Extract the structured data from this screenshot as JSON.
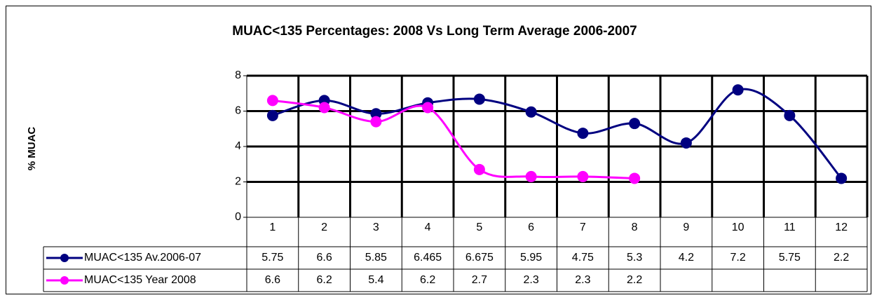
{
  "chart_data": {
    "type": "line",
    "title": "MUAC<135 Percentages: 2008 Vs Long Term Average 2006-2007",
    "y_label": "% MUAC",
    "categories": [
      "1",
      "2",
      "3",
      "4",
      "5",
      "6",
      "7",
      "8",
      "9",
      "10",
      "11",
      "12"
    ],
    "series": [
      {
        "name": "MUAC<135 Av.2006-07",
        "color": "#000080",
        "values": [
          5.75,
          6.6,
          5.85,
          6.465,
          6.675,
          5.95,
          4.75,
          5.3,
          4.2,
          7.2,
          5.75,
          2.2
        ]
      },
      {
        "name": "MUAC<135 Year 2008",
        "color": "#ff00ff",
        "values": [
          6.6,
          6.2,
          5.4,
          6.2,
          2.7,
          2.3,
          2.3,
          2.2,
          null,
          null,
          null,
          null
        ]
      }
    ],
    "ylim": [
      0,
      8
    ],
    "yticks": [
      0,
      2,
      4,
      6,
      8
    ],
    "grid": true,
    "data_table": true
  }
}
